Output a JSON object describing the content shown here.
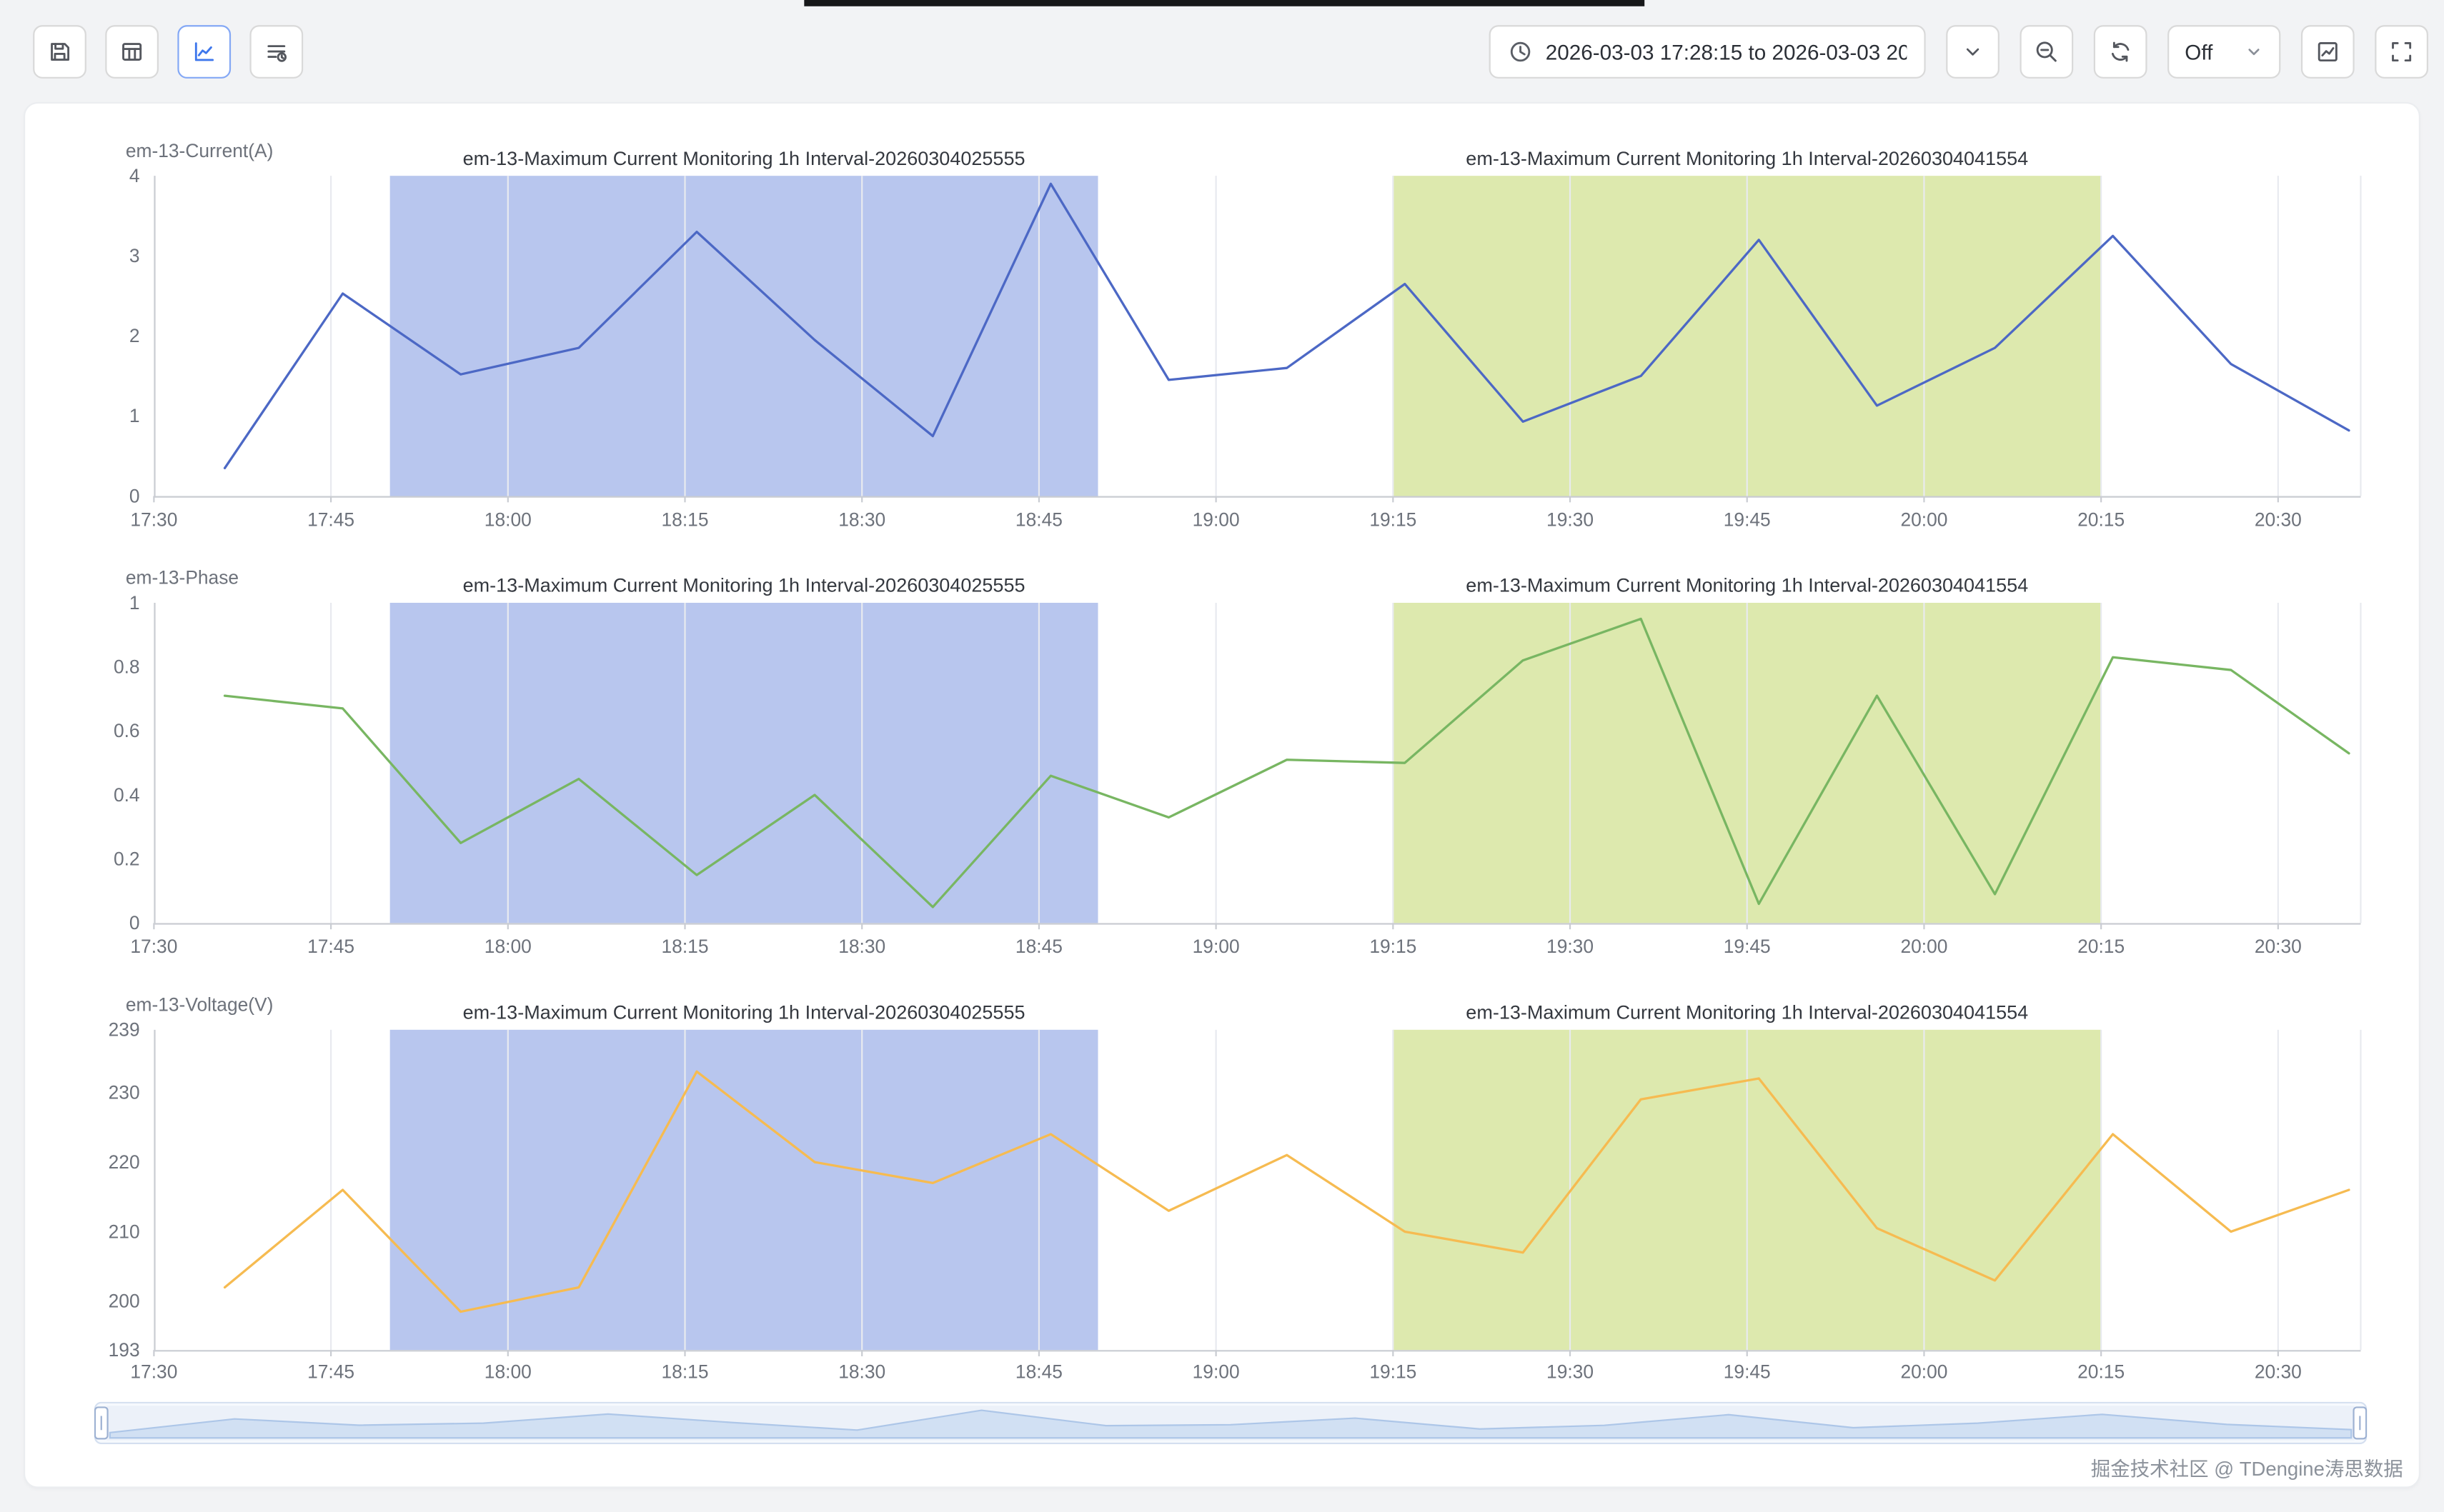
{
  "toolbar": {
    "time_range": "2026-03-03 17:28:15 to 2026-03-03 20",
    "refresh_interval": "Off"
  },
  "icons": [
    "save",
    "table-view",
    "line-chart",
    "query-details",
    "clock",
    "chevron-down",
    "zoom-out",
    "refresh",
    "chart-export",
    "fullscreen"
  ],
  "watermark": "掘金技术社区 @ TDengine涛思数据",
  "x_axis": {
    "tick_labels": [
      "17:30",
      "17:45",
      "18:00",
      "18:15",
      "18:30",
      "18:45",
      "19:00",
      "19:15",
      "19:30",
      "19:45",
      "20:00",
      "20:15",
      "20:30"
    ],
    "tick_minutes": [
      0,
      15,
      30,
      45,
      60,
      75,
      90,
      105,
      120,
      135,
      150,
      165,
      180
    ],
    "range_minutes": [
      0,
      187
    ]
  },
  "regions": [
    {
      "label": "em-13-Maximum Current Monitoring 1h Interval-20260304025555",
      "start_min": 20,
      "end_min": 80,
      "color": "#b8c6ee"
    },
    {
      "label": "em-13-Maximum Current Monitoring 1h Interval-20260304041554",
      "start_min": 105,
      "end_min": 165,
      "color": "#dde9ae"
    }
  ],
  "chart_data": [
    {
      "type": "line",
      "name": "em-13-Current(A)",
      "color": "#4c68c5",
      "x_minutes": [
        6,
        16,
        26,
        36,
        46,
        56,
        66,
        76,
        86,
        96,
        106,
        116,
        126,
        136,
        146,
        156,
        166,
        176,
        186
      ],
      "values": [
        0.35,
        2.53,
        1.52,
        1.85,
        3.3,
        1.95,
        0.75,
        3.9,
        1.45,
        1.6,
        2.65,
        0.93,
        1.5,
        3.2,
        1.13,
        1.85,
        3.25,
        1.65,
        0.82
      ],
      "y_ticks": [
        0,
        1,
        2,
        3,
        4
      ],
      "ylim": [
        0,
        4
      ]
    },
    {
      "type": "line",
      "name": "em-13-Phase",
      "color": "#78b662",
      "x_minutes": [
        6,
        16,
        26,
        36,
        46,
        56,
        66,
        76,
        86,
        96,
        106,
        116,
        126,
        136,
        146,
        156,
        166,
        176,
        186
      ],
      "values": [
        0.71,
        0.67,
        0.25,
        0.45,
        0.15,
        0.4,
        0.05,
        0.46,
        0.33,
        0.51,
        0.5,
        0.82,
        0.95,
        0.06,
        0.71,
        0.09,
        0.83,
        0.79,
        0.53
      ],
      "y_ticks": [
        0,
        0.2,
        0.4,
        0.6,
        0.8,
        1
      ],
      "ylim": [
        0,
        1
      ]
    },
    {
      "type": "line",
      "name": "em-13-Voltage(V)",
      "color": "#f6bb51",
      "x_minutes": [
        6,
        16,
        26,
        36,
        46,
        56,
        66,
        76,
        86,
        96,
        106,
        116,
        126,
        136,
        146,
        156,
        166,
        176,
        186
      ],
      "values": [
        202,
        216,
        198.5,
        202,
        233,
        220,
        217,
        224,
        213,
        221,
        210,
        207,
        229,
        232,
        210.5,
        203,
        224,
        210,
        216
      ],
      "y_ticks": [
        193,
        200,
        210,
        220,
        230,
        239
      ],
      "ylim": [
        193,
        239
      ]
    }
  ]
}
